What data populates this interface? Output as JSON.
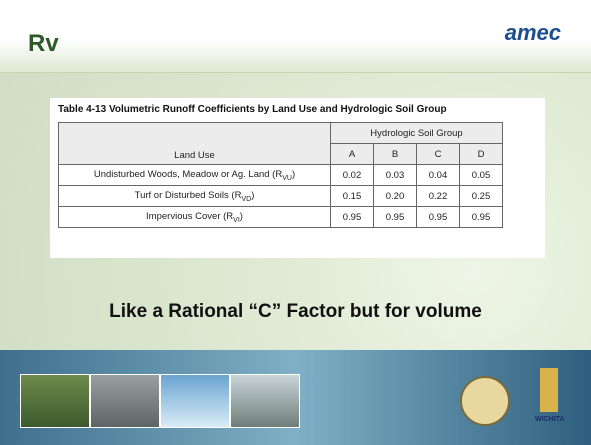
{
  "header": {
    "title": "Rv",
    "logo": "amec"
  },
  "table": {
    "caption": "Table 4-13  Volumetric Runoff Coefficients by Land Use and Hydrologic Soil Group",
    "group_header": "Hydrologic Soil Group",
    "columns": [
      "Land Use",
      "A",
      "B",
      "C",
      "D"
    ],
    "rows": [
      {
        "label": {
          "text": "Undisturbed Woods, Meadow or Ag. Land (R",
          "sub": "VU",
          "after": ")"
        },
        "values": [
          "0.02",
          "0.03",
          "0.04",
          "0.05"
        ]
      },
      {
        "label": {
          "text": "Turf or Disturbed Soils (R",
          "sub": "VD",
          "after": ")"
        },
        "values": [
          "0.15",
          "0.20",
          "0.22",
          "0.25"
        ]
      },
      {
        "label": {
          "text": "Impervious Cover (R",
          "sub": "VI",
          "after": ")"
        },
        "values": [
          "0.95",
          "0.95",
          "0.95",
          "0.95"
        ]
      }
    ]
  },
  "subtitle": "Like a Rational “C” Factor but for volume",
  "footer": {
    "city": "WICHITA"
  }
}
